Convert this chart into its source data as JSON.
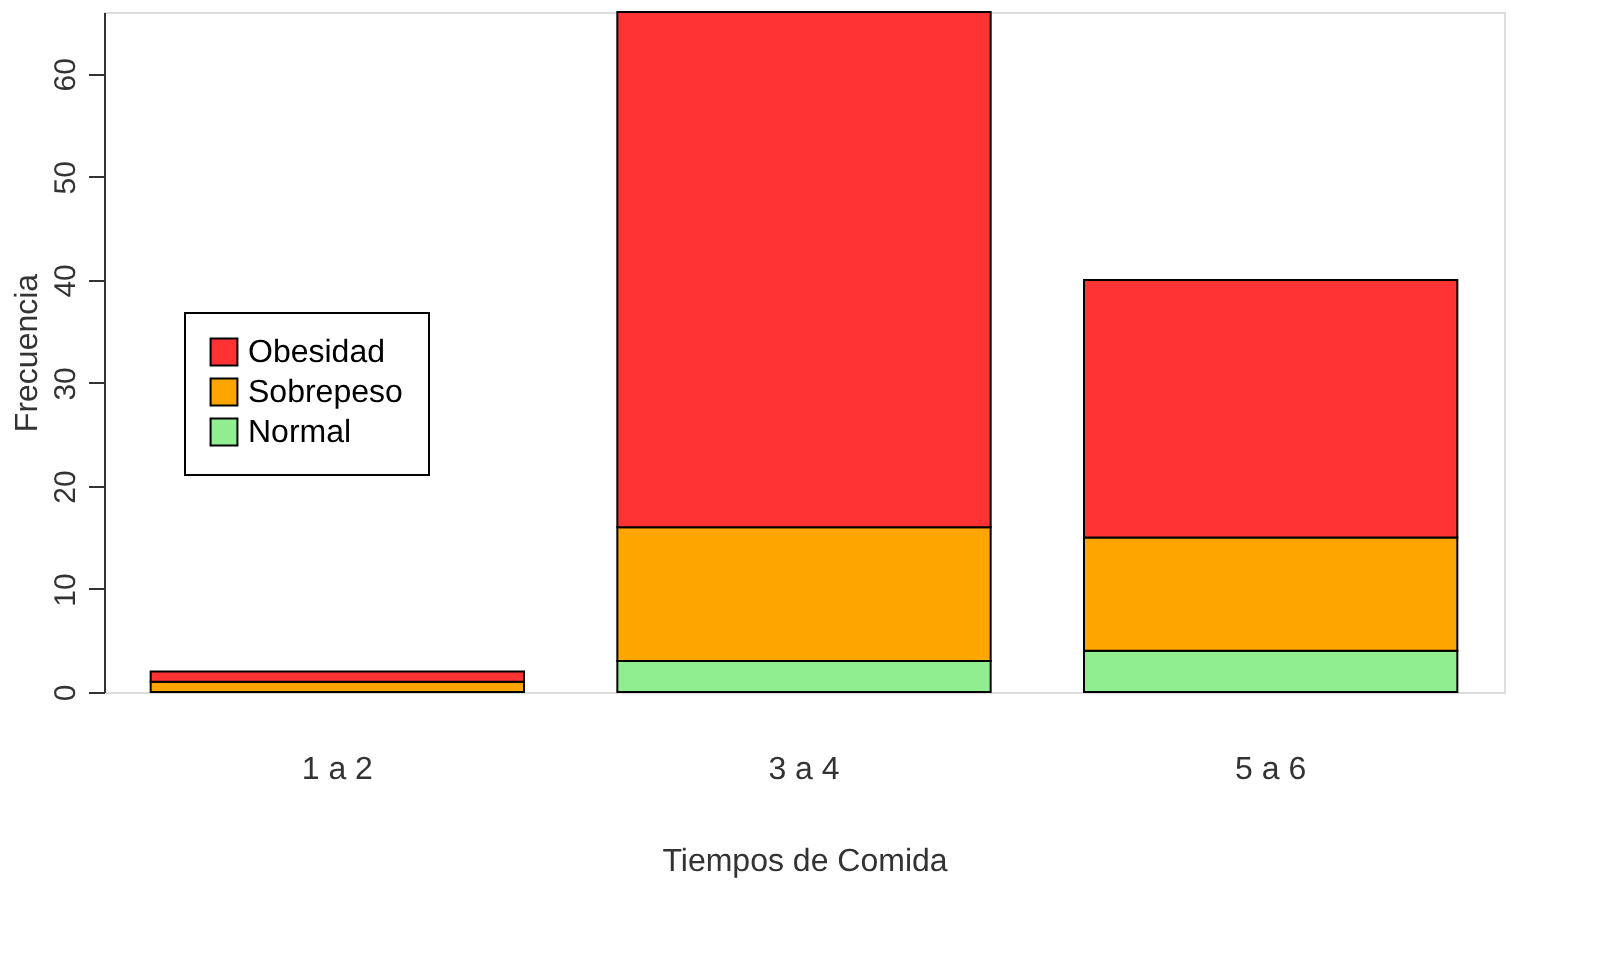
{
  "chart_data": {
    "type": "bar",
    "stacked": true,
    "xlabel": "Tiempos de Comida",
    "ylabel": "Frecuencia",
    "categories": [
      "1 a 2",
      "3 a 4",
      "5 a 6"
    ],
    "series": [
      {
        "name": "Normal",
        "color": "#90ee90",
        "values": [
          0,
          3,
          4
        ]
      },
      {
        "name": "Sobrepeso",
        "color": "#ffa500",
        "values": [
          1,
          13,
          11
        ]
      },
      {
        "name": "Obesidad",
        "color": "#ff3333",
        "values": [
          1,
          50,
          25
        ]
      }
    ],
    "ylim": [
      0,
      66
    ],
    "yticks": [
      0,
      10,
      20,
      30,
      40,
      50,
      60
    ],
    "grid": false,
    "legend": "left"
  }
}
